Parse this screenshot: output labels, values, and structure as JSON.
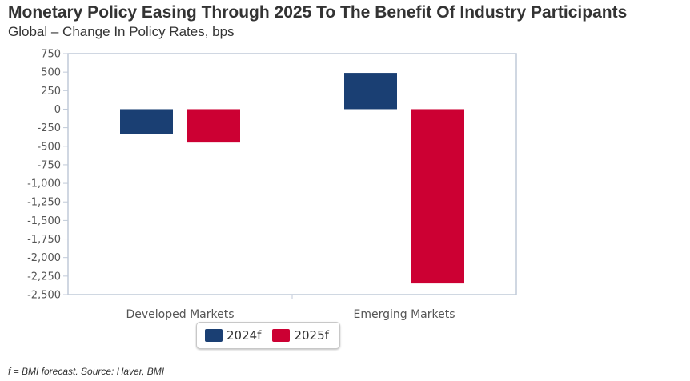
{
  "title": "Monetary Policy Easing Through 2025 To The Benefit Of Industry Participants",
  "subtitle": "Global – Change In Policy Rates, bps",
  "footnote": "f = BMI forecast. Source: Haver, BMI",
  "colors": {
    "series_2024f": "#1a3f73",
    "series_2025f": "#cc0033",
    "axis": "#c0cad8"
  },
  "chart_data": {
    "type": "bar",
    "categories": [
      "Developed Markets",
      "Emerging Markets"
    ],
    "series": [
      {
        "name": "2024f",
        "values": [
          -340,
          490
        ]
      },
      {
        "name": "2025f",
        "values": [
          -450,
          -2350
        ]
      }
    ],
    "title": "Monetary Policy Easing Through 2025 To The Benefit Of Industry Participants",
    "subtitle": "Global – Change In Policy Rates, bps",
    "xlabel": "",
    "ylabel": "",
    "ylim": [
      -2500,
      750
    ],
    "yticks": [
      "750",
      "500",
      "250",
      "0",
      "-250",
      "-500",
      "-750",
      "-1,000",
      "-1,250",
      "-1,500",
      "-1,750",
      "-2,000",
      "-2,250",
      "-2,500"
    ],
    "grid": false,
    "legend": "bottom"
  }
}
